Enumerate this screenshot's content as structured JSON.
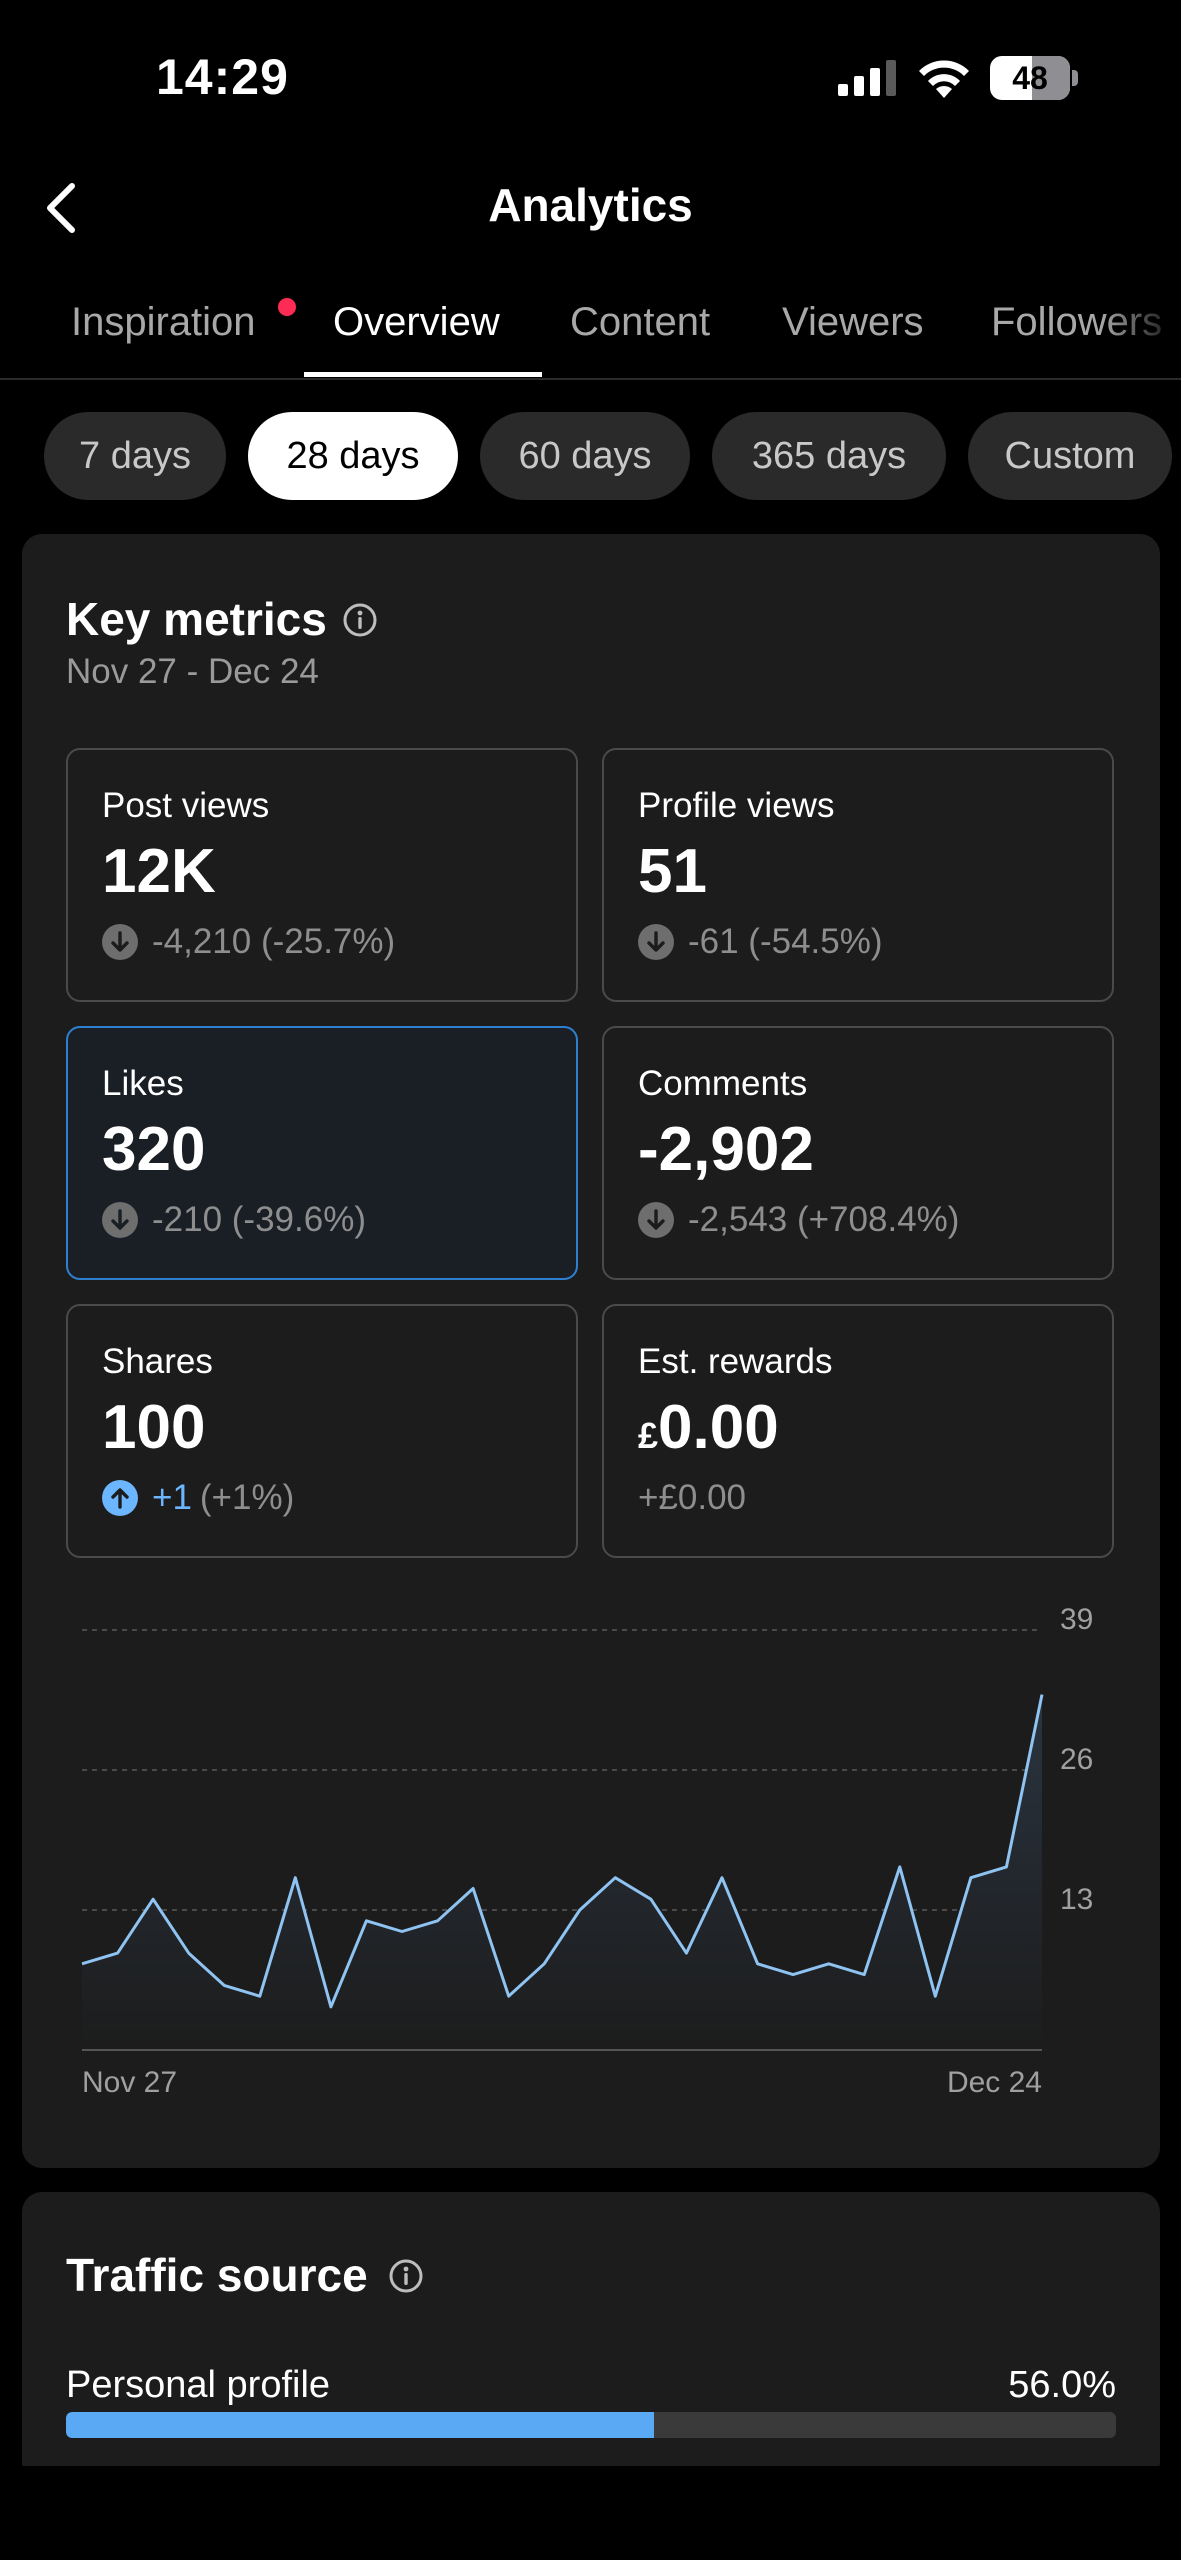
{
  "status_bar": {
    "time": "14:29",
    "battery": "48"
  },
  "header": {
    "title": "Analytics"
  },
  "tabs": [
    {
      "label": "Inspiration",
      "active": false,
      "has_dot": true
    },
    {
      "label": "Overview",
      "active": true
    },
    {
      "label": "Content",
      "active": false
    },
    {
      "label": "Viewers",
      "active": false
    },
    {
      "label": "Followers",
      "active": false
    }
  ],
  "date_chips": [
    {
      "label": "7 days",
      "active": false
    },
    {
      "label": "28 days",
      "active": true
    },
    {
      "label": "60 days",
      "active": false
    },
    {
      "label": "365 days",
      "active": false
    },
    {
      "label": "Custom",
      "active": false
    }
  ],
  "key_metrics": {
    "title": "Key metrics",
    "date_range": "Nov 27 - Dec 24",
    "tiles": {
      "post_views": {
        "label": "Post views",
        "value": "12K",
        "change": "-4,210 (-25.7%)",
        "direction": "down"
      },
      "profile_views": {
        "label": "Profile views",
        "value": "51",
        "change": "-61 (-54.5%)",
        "direction": "down"
      },
      "likes": {
        "label": "Likes",
        "value": "320",
        "change": "-210 (-39.6%)",
        "direction": "down",
        "selected": true
      },
      "comments": {
        "label": "Comments",
        "value": "-2,902",
        "change": "-2,543 (+708.4%)",
        "direction": "down"
      },
      "shares": {
        "label": "Shares",
        "value": "100",
        "change_amount": "+1",
        "change_pct": "(+1%)",
        "direction": "up"
      },
      "rewards": {
        "label": "Est. rewards",
        "currency": "£",
        "value": "0.00",
        "change": "+£0.00"
      }
    }
  },
  "chart_data": {
    "type": "area",
    "x_start_label": "Nov 27",
    "x_end_label": "Dec 24",
    "y_ticks": [
      "39",
      "26",
      "13"
    ],
    "ylim": [
      0,
      39
    ],
    "grid": true,
    "values": [
      8,
      9,
      14,
      9,
      6,
      5,
      16,
      4,
      12,
      11,
      12,
      15,
      5,
      8,
      13,
      16,
      14,
      9,
      16,
      8,
      7,
      8,
      7,
      17,
      5,
      16,
      17,
      33
    ],
    "colors": {
      "line": "#8ec3f2",
      "fill_top": "#2a3440",
      "fill_bottom": "#1c1c1c"
    }
  },
  "traffic_source": {
    "title": "Traffic source",
    "items": [
      {
        "label": "Personal profile",
        "value": "56.0%",
        "fraction": 0.56
      }
    ]
  }
}
